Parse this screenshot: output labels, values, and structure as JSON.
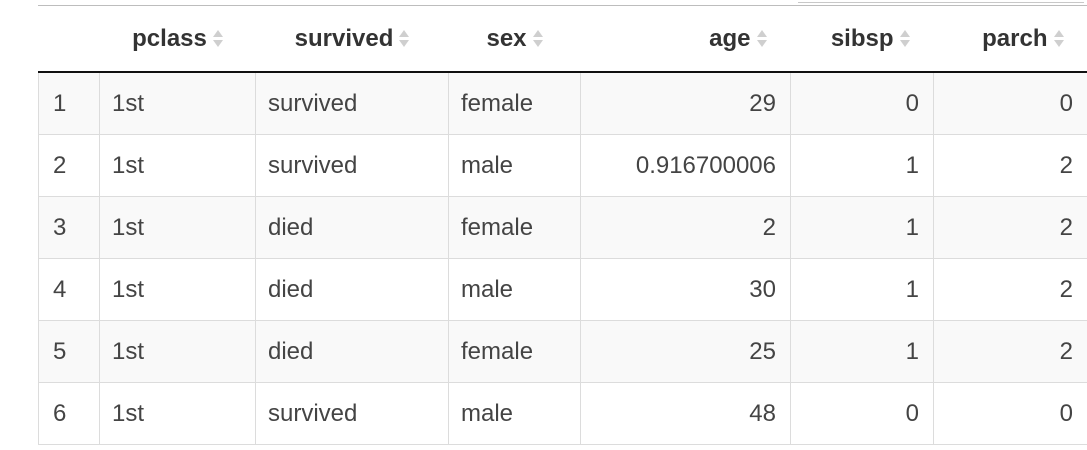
{
  "table": {
    "columns": [
      {
        "key": "rowid",
        "label": ""
      },
      {
        "key": "pclass",
        "label": "pclass"
      },
      {
        "key": "survived",
        "label": "survived"
      },
      {
        "key": "sex",
        "label": "sex"
      },
      {
        "key": "age",
        "label": "age"
      },
      {
        "key": "sibsp",
        "label": "sibsp"
      },
      {
        "key": "parch",
        "label": "parch"
      }
    ],
    "rows": [
      {
        "rowid": "1",
        "pclass": "1st",
        "survived": "survived",
        "sex": "female",
        "age": "29",
        "sibsp": "0",
        "parch": "0"
      },
      {
        "rowid": "2",
        "pclass": "1st",
        "survived": "survived",
        "sex": "male",
        "age": "0.916700006",
        "sibsp": "1",
        "parch": "2"
      },
      {
        "rowid": "3",
        "pclass": "1st",
        "survived": "died",
        "sex": "female",
        "age": "2",
        "sibsp": "1",
        "parch": "2"
      },
      {
        "rowid": "4",
        "pclass": "1st",
        "survived": "died",
        "sex": "male",
        "age": "30",
        "sibsp": "1",
        "parch": "2"
      },
      {
        "rowid": "5",
        "pclass": "1st",
        "survived": "died",
        "sex": "female",
        "age": "25",
        "sibsp": "1",
        "parch": "2"
      },
      {
        "rowid": "6",
        "pclass": "1st",
        "survived": "survived",
        "sex": "male",
        "age": "48",
        "sibsp": "0",
        "parch": "0"
      }
    ]
  },
  "icons": {
    "sort": "sort-both-icon"
  },
  "colors": {
    "header_rule": "#111111",
    "odd_row": "#f9f9f9",
    "cell_border": "#dcdcdc",
    "sort_icon": "#cfcfcf"
  }
}
